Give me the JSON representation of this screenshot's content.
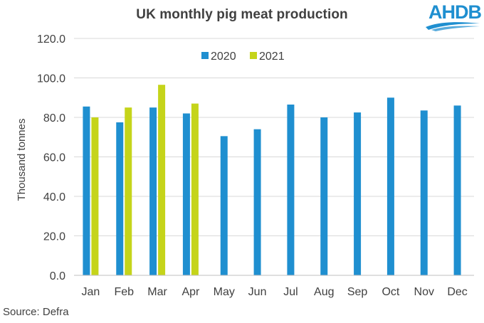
{
  "header": {
    "title": "UK monthly  pig meat production",
    "logo_text": "AHDB"
  },
  "footer": {
    "source": "Source: Defra"
  },
  "colors": {
    "series_2020": "#1f8fd0",
    "series_2021": "#c5d41a",
    "gridline": "#d9d9d9",
    "axis_line": "#bfbfbf",
    "text": "#404040",
    "logo": "#1f8fd0"
  },
  "chart_data": {
    "type": "bar",
    "title": "UK monthly  pig meat production",
    "xlabel": "",
    "ylabel": "Thousand tonnes",
    "ylim": [
      0,
      120
    ],
    "yticks": [
      "0.0",
      "20.0",
      "40.0",
      "60.0",
      "80.0",
      "100.0",
      "120.0"
    ],
    "grid": true,
    "legend_position": "top",
    "categories": [
      "Jan",
      "Feb",
      "Mar",
      "Apr",
      "May",
      "Jun",
      "Jul",
      "Aug",
      "Sep",
      "Oct",
      "Nov",
      "Dec"
    ],
    "series": [
      {
        "name": "2020",
        "color": "#1f8fd0",
        "values": [
          85.5,
          77.5,
          85.0,
          82.0,
          70.5,
          74.0,
          86.5,
          80.0,
          82.5,
          90.0,
          83.5,
          86.0
        ]
      },
      {
        "name": "2021",
        "color": "#c5d41a",
        "values": [
          80.0,
          85.0,
          96.5,
          87.0,
          null,
          null,
          null,
          null,
          null,
          null,
          null,
          null
        ]
      }
    ]
  }
}
